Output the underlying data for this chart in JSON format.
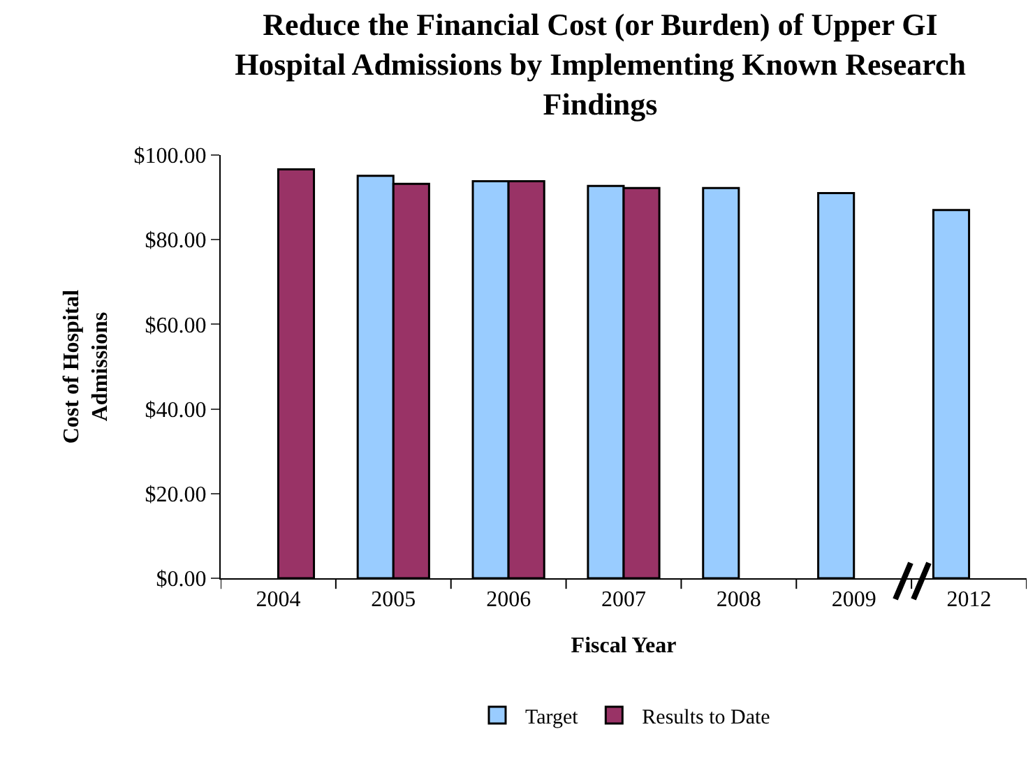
{
  "chart_data": {
    "type": "bar",
    "title": "Reduce the Financial Cost (or Burden) of Upper GI\nHospital Admissions by Implementing Known Research\nFindings",
    "xlabel": "Fiscal Year",
    "ylabel": "Cost of Hospital\nAdmissions",
    "categories": [
      "2004",
      "2005",
      "2006",
      "2007",
      "2008",
      "2009",
      "2012"
    ],
    "series": [
      {
        "name": "Target",
        "color": "#99ccff",
        "values": [
          null,
          95.1,
          93.8,
          92.7,
          92.2,
          91.0,
          87.0
        ]
      },
      {
        "name": "Results to Date",
        "color": "#993366",
        "values": [
          96.6,
          93.2,
          93.8,
          92.2,
          null,
          null,
          null
        ]
      }
    ],
    "ylim": [
      0,
      100
    ],
    "yticks": [
      {
        "value": 0,
        "label": "$0.00"
      },
      {
        "value": 20,
        "label": "$20.00"
      },
      {
        "value": 40,
        "label": "$40.00"
      },
      {
        "value": 60,
        "label": "$60.00"
      },
      {
        "value": 80,
        "label": "$80.00"
      },
      {
        "value": 100,
        "label": "$100.00"
      }
    ],
    "grid": false,
    "legend": "bottom"
  }
}
